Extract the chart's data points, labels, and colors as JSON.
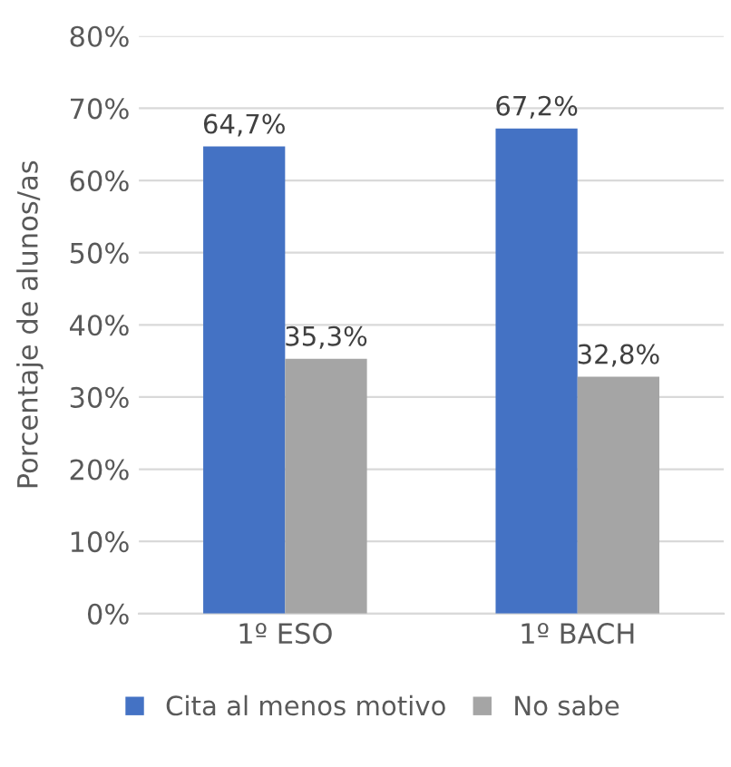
{
  "chart_data": {
    "type": "bar",
    "ylabel": "Porcentaje de alunos/as",
    "categories": [
      "1º ESO",
      "1º BACH"
    ],
    "series": [
      {
        "name": "Cita al menos motivo",
        "color": "#4472c4",
        "values": [
          64.7,
          67.2
        ],
        "value_labels": [
          "64,7%",
          "67,2%"
        ]
      },
      {
        "name": "No sabe",
        "color": "#a5a5a5",
        "values": [
          35.3,
          32.8
        ],
        "value_labels": [
          "35,3%",
          "32,8%"
        ]
      }
    ],
    "ylim": [
      0,
      80
    ],
    "yticks": [
      {
        "value": 0,
        "label": "0%"
      },
      {
        "value": 10,
        "label": "10%"
      },
      {
        "value": 20,
        "label": "20%"
      },
      {
        "value": 30,
        "label": "30%"
      },
      {
        "value": 40,
        "label": "40%"
      },
      {
        "value": 50,
        "label": "50%"
      },
      {
        "value": 60,
        "label": "60%"
      },
      {
        "value": 70,
        "label": "70%"
      },
      {
        "value": 80,
        "label": "80%"
      }
    ],
    "grid": "y",
    "legend": "bottom"
  }
}
